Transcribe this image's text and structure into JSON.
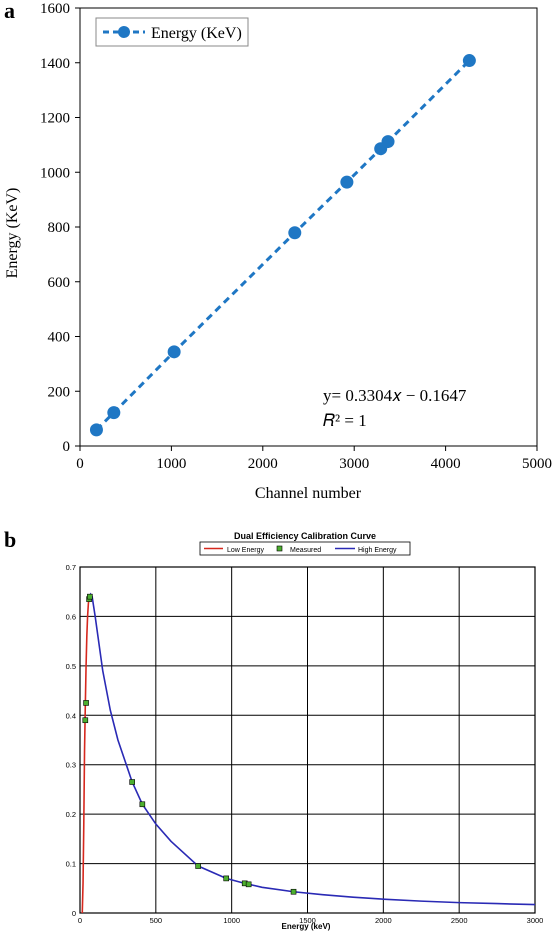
{
  "panels": [
    {
      "label": "a"
    },
    {
      "label": "b"
    }
  ],
  "colors": {
    "series_a": "#1f77c4",
    "low_energy": "#d6281e",
    "measured_fill": "#4caf2f",
    "high_energy": "#2a2ab5",
    "grid_b": "#000000"
  },
  "chart_data": [
    {
      "type": "scatter",
      "xlabel": "Channel number",
      "ylabel": "Energy (KeV)",
      "xlim": [
        0,
        5000
      ],
      "ylim": [
        0,
        1600
      ],
      "xticks": [
        0,
        1000,
        2000,
        3000,
        4000,
        5000
      ],
      "yticks": [
        0,
        200,
        400,
        600,
        800,
        1000,
        1200,
        1400,
        1600
      ],
      "legend": {
        "position": "top-left"
      },
      "grid": false,
      "series": [
        {
          "name": "Energy (KeV)",
          "style": "dashed-line-with-markers",
          "x": [
            180,
            370,
            1030,
            2350,
            2920,
            3290,
            3370,
            4260
          ],
          "y": [
            59,
            122,
            344,
            779,
            964,
            1086,
            1112,
            1408
          ]
        }
      ],
      "annotations": [
        "y= 0.3304𝑥 − 0.1647",
        "𝑅² = 1"
      ]
    },
    {
      "type": "line",
      "title": "Dual Efficiency Calibration Curve",
      "xlabel": "Energy (keV)",
      "ylabel": "",
      "xlim": [
        0,
        3000
      ],
      "ylim": [
        0,
        0.7
      ],
      "xticks": [
        0,
        500,
        1000,
        1500,
        2000,
        2500,
        3000
      ],
      "yticks": [
        0,
        0.1,
        0.2,
        0.3,
        0.4,
        0.5,
        0.6,
        0.7
      ],
      "grid": true,
      "legend": {
        "position": "top-center"
      },
      "series": [
        {
          "name": "Low Energy",
          "type": "line",
          "x": [
            15,
            20,
            25,
            30,
            35,
            40,
            45,
            50,
            55,
            60
          ],
          "y": [
            0.0,
            0.06,
            0.18,
            0.33,
            0.42,
            0.5,
            0.56,
            0.6,
            0.625,
            0.64
          ]
        },
        {
          "name": "Measured",
          "type": "scatter",
          "x": [
            35,
            40,
            60,
            65,
            344,
            411,
            779,
            964,
            1086,
            1112,
            1408
          ],
          "y": [
            0.39,
            0.425,
            0.635,
            0.64,
            0.265,
            0.22,
            0.095,
            0.07,
            0.06,
            0.058,
            0.043
          ]
        },
        {
          "name": "High Energy",
          "type": "line",
          "x": [
            60,
            70,
            80,
            100,
            150,
            200,
            250,
            344,
            411,
            500,
            600,
            779,
            964,
            1086,
            1200,
            1408,
            1600,
            1800,
            2000,
            2250,
            2500,
            2750,
            3000
          ],
          "y": [
            0.64,
            0.645,
            0.64,
            0.6,
            0.49,
            0.41,
            0.35,
            0.265,
            0.22,
            0.18,
            0.145,
            0.095,
            0.07,
            0.06,
            0.052,
            0.043,
            0.037,
            0.032,
            0.028,
            0.024,
            0.021,
            0.019,
            0.017
          ]
        }
      ]
    }
  ]
}
